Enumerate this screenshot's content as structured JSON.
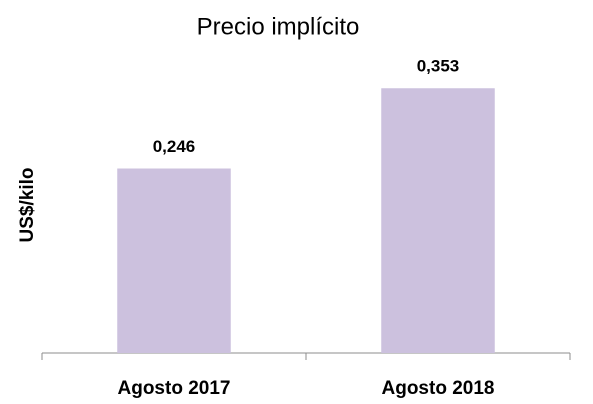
{
  "chart_data": {
    "type": "bar",
    "title": "Precio implícito",
    "y_label": "US$/kilo",
    "categories": [
      "Agosto 2017",
      "Agosto 2018"
    ],
    "values": [
      0.246,
      0.353
    ],
    "value_labels": [
      "0,246",
      "0,353"
    ],
    "color": "#ccc1de",
    "ylim": [
      0,
      0.4
    ]
  }
}
